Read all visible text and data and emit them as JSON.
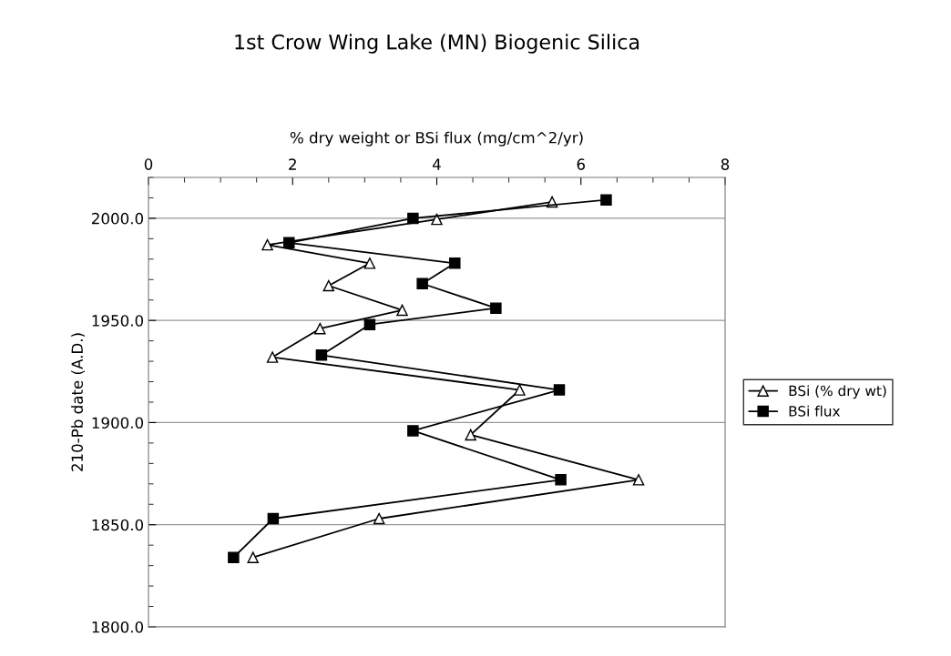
{
  "chart_data": {
    "type": "line",
    "title": "1st Crow Wing Lake (MN) Biogenic Silica",
    "xlabel": "% dry weight or BSi flux (mg/cm^2/yr)",
    "ylabel": "210-Pb date (A.D.)",
    "xlim": [
      0,
      8
    ],
    "xticks": [
      0,
      2,
      4,
      6,
      8
    ],
    "ylim": [
      1800,
      2020
    ],
    "yticks": [
      {
        "value": 1800,
        "label": "1800.0"
      },
      {
        "value": 1850,
        "label": "1850.0"
      },
      {
        "value": 1900,
        "label": "1900.0"
      },
      {
        "value": 1950,
        "label": "1950.0"
      },
      {
        "value": 2000,
        "label": "2000.0"
      }
    ],
    "grid": "y",
    "legend": "right",
    "series": [
      {
        "name": "BSi (% dry wt)",
        "color": "#000000",
        "marker": "triangle",
        "x": [
          5.6,
          4.0,
          1.65,
          3.07,
          2.5,
          3.52,
          2.38,
          1.72,
          5.15,
          4.47,
          6.8,
          3.2,
          1.45
        ],
        "values": [
          2008,
          1999.5,
          1987,
          1978,
          1967,
          1955,
          1946,
          1932,
          1916,
          1894,
          1872,
          1853,
          1834
        ]
      },
      {
        "name": "BSi flux",
        "color": "#000000",
        "marker": "square",
        "x": [
          6.35,
          3.67,
          1.95,
          4.25,
          3.8,
          4.82,
          3.07,
          2.4,
          5.7,
          3.67,
          5.72,
          1.73,
          1.18
        ],
        "values": [
          2009,
          2000,
          1988,
          1978,
          1968,
          1956,
          1948,
          1933,
          1916,
          1896,
          1872,
          1853,
          1834
        ]
      }
    ]
  }
}
